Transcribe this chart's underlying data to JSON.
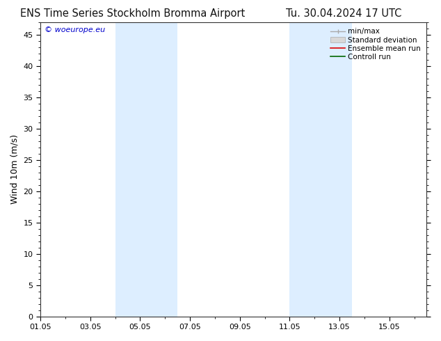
{
  "title_left": "ENS Time Series Stockholm Bromma Airport",
  "title_right": "Tu. 30.04.2024 17 UTC",
  "ylabel": "Wind 10m (m/s)",
  "watermark": "© woeurope.eu",
  "xlim_start": 0.0,
  "xlim_end": 15.5,
  "ylim": [
    0,
    47
  ],
  "yticks": [
    0,
    5,
    10,
    15,
    20,
    25,
    30,
    35,
    40,
    45
  ],
  "xtick_labels": [
    "01.05",
    "03.05",
    "05.05",
    "07.05",
    "09.05",
    "11.05",
    "13.05",
    "15.05"
  ],
  "xtick_positions": [
    0,
    2,
    4,
    6,
    8,
    10,
    12,
    14
  ],
  "shaded_bands": [
    {
      "x_start": 3.0,
      "x_end": 5.5,
      "color": "#ddeeff"
    },
    {
      "x_start": 10.0,
      "x_end": 12.5,
      "color": "#ddeeff"
    }
  ],
  "watermark_color": "#0000cc",
  "background_color": "#ffffff",
  "fig_width": 6.34,
  "fig_height": 4.9,
  "dpi": 100,
  "title_fontsize": 10.5,
  "axis_label_fontsize": 9,
  "tick_fontsize": 8,
  "legend_fontsize": 7.5
}
